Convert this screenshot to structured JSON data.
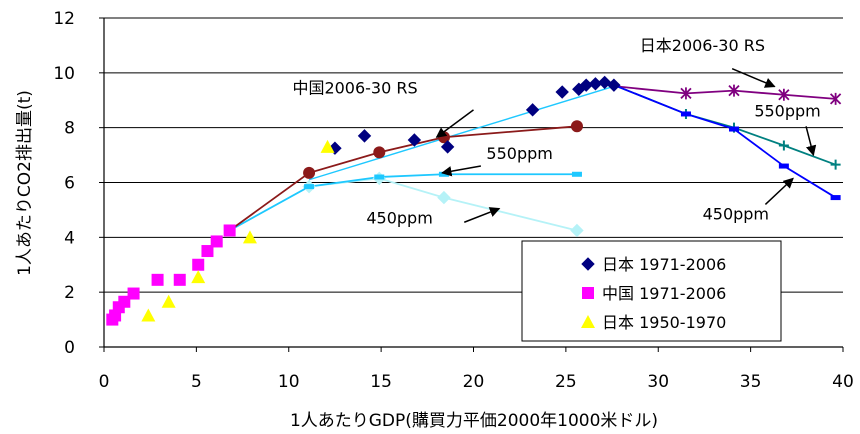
{
  "chart_data": {
    "type": "scatter",
    "title": "",
    "xlabel": "1人あたりGDP(購買力平価2000年1000米ドル)",
    "ylabel": "1人あたりCO2排出量(t)",
    "xlim": [
      0,
      40
    ],
    "ylim": [
      0,
      12
    ],
    "x_ticks": [
      "0",
      "5",
      "10",
      "15",
      "20",
      "25",
      "30",
      "35",
      "40"
    ],
    "y_ticks": [
      "0",
      "2",
      "4",
      "6",
      "8",
      "10",
      "12"
    ],
    "grid": "horizontal",
    "legend_position": "bottom-right",
    "legend": [
      {
        "label": "日本 1971-2006",
        "color": "#000080",
        "marker": "diamond"
      },
      {
        "label": "中国 1971-2006",
        "color": "#ff00ff",
        "marker": "square"
      },
      {
        "label": "日本 1950-1970",
        "color": "#ffff00",
        "marker": "triangle"
      }
    ],
    "series": [
      {
        "key": "japan_1971_2006",
        "color": "#000080",
        "marker": "diamond",
        "line": false,
        "points": [
          [
            12.5,
            7.25
          ],
          [
            14.1,
            7.7
          ],
          [
            16.8,
            7.55
          ],
          [
            18.6,
            7.3
          ],
          [
            23.2,
            8.65
          ],
          [
            24.8,
            9.3
          ],
          [
            25.7,
            9.4
          ],
          [
            26.1,
            9.55
          ],
          [
            26.6,
            9.6
          ],
          [
            27.1,
            9.65
          ],
          [
            27.6,
            9.55
          ]
        ]
      },
      {
        "key": "china_1971_2006",
        "color": "#ff00ff",
        "marker": "square",
        "line": false,
        "points": [
          [
            0.45,
            1.0
          ],
          [
            0.6,
            1.15
          ],
          [
            0.8,
            1.45
          ],
          [
            1.1,
            1.65
          ],
          [
            1.6,
            1.95
          ],
          [
            2.9,
            2.45
          ],
          [
            4.1,
            2.45
          ],
          [
            5.1,
            3.0
          ],
          [
            5.6,
            3.5
          ],
          [
            6.1,
            3.85
          ],
          [
            6.8,
            4.25
          ]
        ]
      },
      {
        "key": "japan_1950_1970",
        "color": "#ffff00",
        "marker": "triangle",
        "line": false,
        "points": [
          [
            2.4,
            1.15
          ],
          [
            3.5,
            1.65
          ],
          [
            5.1,
            2.55
          ],
          [
            7.9,
            4.0
          ],
          [
            12.1,
            7.3
          ]
        ]
      },
      {
        "key": "china_2006_30_rs",
        "color": "#8b1a1a",
        "marker": "circle",
        "line": true,
        "points": [
          [
            6.8,
            4.25
          ],
          [
            11.1,
            6.35
          ],
          [
            14.9,
            7.1
          ],
          [
            18.4,
            7.65
          ],
          [
            25.6,
            8.05
          ]
        ]
      },
      {
        "key": "china_550ppm",
        "color": "#1ec8ff",
        "marker": "dash",
        "line": true,
        "points": [
          [
            6.8,
            4.25
          ],
          [
            11.1,
            5.85
          ],
          [
            14.9,
            6.2
          ],
          [
            18.4,
            6.3
          ],
          [
            25.6,
            6.3
          ]
        ]
      },
      {
        "key": "china_450ppm",
        "color": "#b5f2f7",
        "marker": "diamond",
        "line": true,
        "points": [
          [
            6.8,
            4.25
          ],
          [
            11.1,
            5.85
          ],
          [
            14.9,
            6.15
          ],
          [
            18.4,
            5.45
          ],
          [
            25.6,
            4.25
          ]
        ]
      },
      {
        "key": "china_to_japan_link",
        "color": "#1ec8ff",
        "marker": "none",
        "line": true,
        "points": [
          [
            11.1,
            6.1
          ],
          [
            27.8,
            9.55
          ]
        ]
      },
      {
        "key": "japan_2006_30_rs",
        "color": "#800080",
        "marker": "star",
        "line": true,
        "points": [
          [
            27.8,
            9.5
          ],
          [
            31.5,
            9.25
          ],
          [
            34.1,
            9.35
          ],
          [
            36.8,
            9.2
          ],
          [
            39.6,
            9.05
          ]
        ]
      },
      {
        "key": "japan_550ppm",
        "color": "#008080",
        "marker": "plus",
        "line": true,
        "points": [
          [
            27.8,
            9.5
          ],
          [
            31.5,
            8.5
          ],
          [
            34.1,
            8.0
          ],
          [
            36.8,
            7.35
          ],
          [
            39.6,
            6.65
          ]
        ]
      },
      {
        "key": "japan_450ppm",
        "color": "#0000ff",
        "marker": "dash",
        "line": true,
        "points": [
          [
            27.8,
            9.5
          ],
          [
            31.5,
            8.5
          ],
          [
            34.1,
            7.95
          ],
          [
            36.8,
            6.6
          ],
          [
            39.6,
            5.45
          ]
        ]
      }
    ],
    "annotations": [
      {
        "text": "日本2006-30  RS",
        "x": 29.0,
        "y": 10.8,
        "arrow_to": [
          36.3,
          9.5
        ],
        "arrow_from": [
          34.0,
          10.15
        ]
      },
      {
        "text": "中国2006-30  RS",
        "x": 10.2,
        "y": 9.25,
        "arrow_to": [
          18.0,
          7.65
        ],
        "arrow_from": [
          20.0,
          8.65
        ]
      },
      {
        "text": "550ppm",
        "x": 20.7,
        "y": 6.85,
        "arrow_to": [
          18.3,
          6.35
        ],
        "arrow_from": [
          20.4,
          6.6
        ]
      },
      {
        "text": "450ppm",
        "x": 14.2,
        "y": 4.5,
        "arrow_to": [
          21.4,
          5.05
        ],
        "arrow_from": [
          19.5,
          4.55
        ]
      },
      {
        "text": "550ppm",
        "x": 35.2,
        "y": 8.4,
        "arrow_to": [
          38.4,
          7.0
        ],
        "arrow_from": [
          38.0,
          8.05
        ]
      },
      {
        "text": "450ppm",
        "x": 32.4,
        "y": 4.65,
        "arrow_to": [
          37.3,
          6.15
        ],
        "arrow_from": [
          35.8,
          5.2
        ]
      }
    ]
  }
}
